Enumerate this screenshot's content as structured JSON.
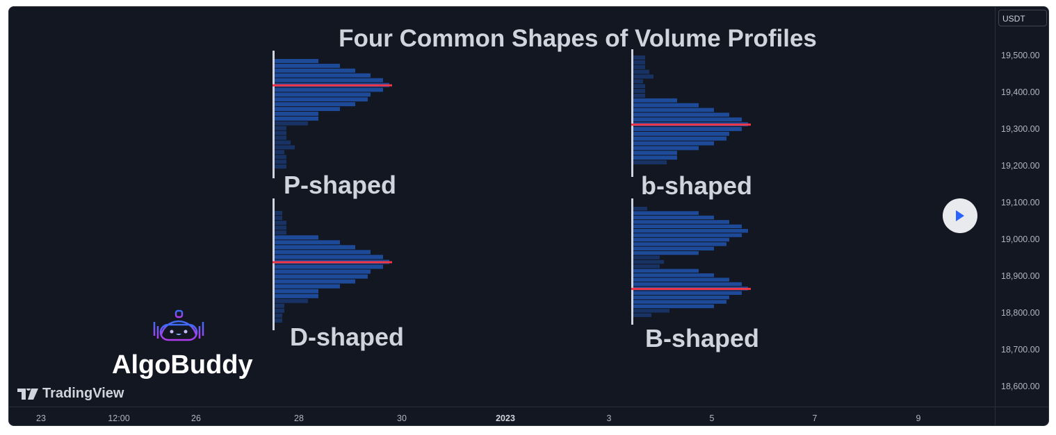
{
  "chart": {
    "title": "Four Common Shapes of Volume Profiles",
    "currency": "USDT",
    "price_labels": [
      "19,500.00",
      "19,400.00",
      "19,300.00",
      "19,200.00",
      "19,100.00",
      "19,000.00",
      "18,900.00",
      "18,800.00",
      "18,700.00",
      "18,600.00"
    ],
    "time_labels": [
      "23",
      "12:00",
      "26",
      "28",
      "30",
      "2023",
      "3",
      "5",
      "7",
      "9"
    ],
    "colors": {
      "background": "#131722",
      "bar_value_area": "#1e4a9a",
      "bar_outer": "#173263",
      "poc": "#f23645",
      "axis_line": "#d1d4dc"
    }
  },
  "chart_data": {
    "type": "bar",
    "orientation": "horizontal",
    "profiles": [
      {
        "name": "P-shaped",
        "poc_index": 5,
        "volumes": [
          63,
          94,
          116,
          138,
          156,
          165,
          156,
          138,
          134,
          116,
          94,
          63,
          63,
          48,
          17,
          17,
          17,
          23,
          29,
          14,
          17,
          17,
          17
        ]
      },
      {
        "name": "b-shaped",
        "poc_index": 14,
        "volumes": [
          17,
          17,
          17,
          23,
          29,
          14,
          17,
          17,
          17,
          63,
          94,
          116,
          138,
          156,
          165,
          156,
          138,
          134,
          116,
          94,
          63,
          63,
          48
        ]
      },
      {
        "name": "D-shaped",
        "poc_index": 10,
        "volumes": [
          11,
          11,
          17,
          17,
          17,
          63,
          94,
          116,
          138,
          156,
          165,
          156,
          138,
          134,
          116,
          94,
          63,
          63,
          48,
          14,
          14,
          11,
          11
        ]
      },
      {
        "name": "B-shaped",
        "poc_index": 18,
        "volumes": [
          20,
          94,
          116,
          138,
          156,
          165,
          156,
          138,
          134,
          116,
          94,
          38,
          44,
          38,
          94,
          116,
          138,
          156,
          165,
          156,
          138,
          134,
          116,
          52,
          26
        ]
      }
    ]
  },
  "branding": {
    "logo_text": "AlgoBuddy",
    "watermark": "TradingView"
  },
  "controls": {
    "play_icon": "play-icon"
  }
}
